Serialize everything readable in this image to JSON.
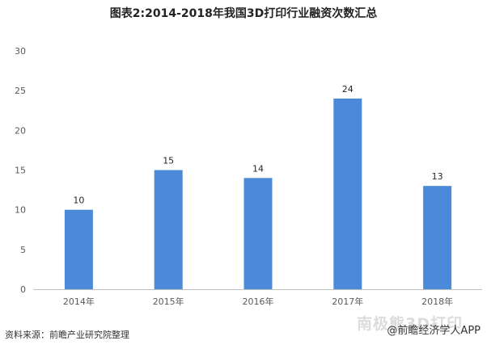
{
  "title": "图表2:2014-2018年我国3D打印行业融资次数汇总",
  "source": "资料来源：前瞻产业研究院整理",
  "watermark": "@前瞻经济学人APP",
  "watermark_faint": "南极熊3D打印",
  "colors": {
    "bar": "#4a8ad8",
    "axis": "#bfbfbf"
  },
  "chart_data": {
    "type": "bar",
    "title": "图表2:2014-2018年我国3D打印行业融资次数汇总",
    "categories": [
      "2014年",
      "2015年",
      "2016年",
      "2017年",
      "2018年"
    ],
    "values": [
      10,
      15,
      14,
      24,
      13
    ],
    "ylim": [
      0,
      30
    ],
    "yticks": [
      0,
      5,
      10,
      15,
      20,
      25,
      30
    ],
    "xlabel": "",
    "ylabel": "",
    "grid": false,
    "data_labels": true
  }
}
